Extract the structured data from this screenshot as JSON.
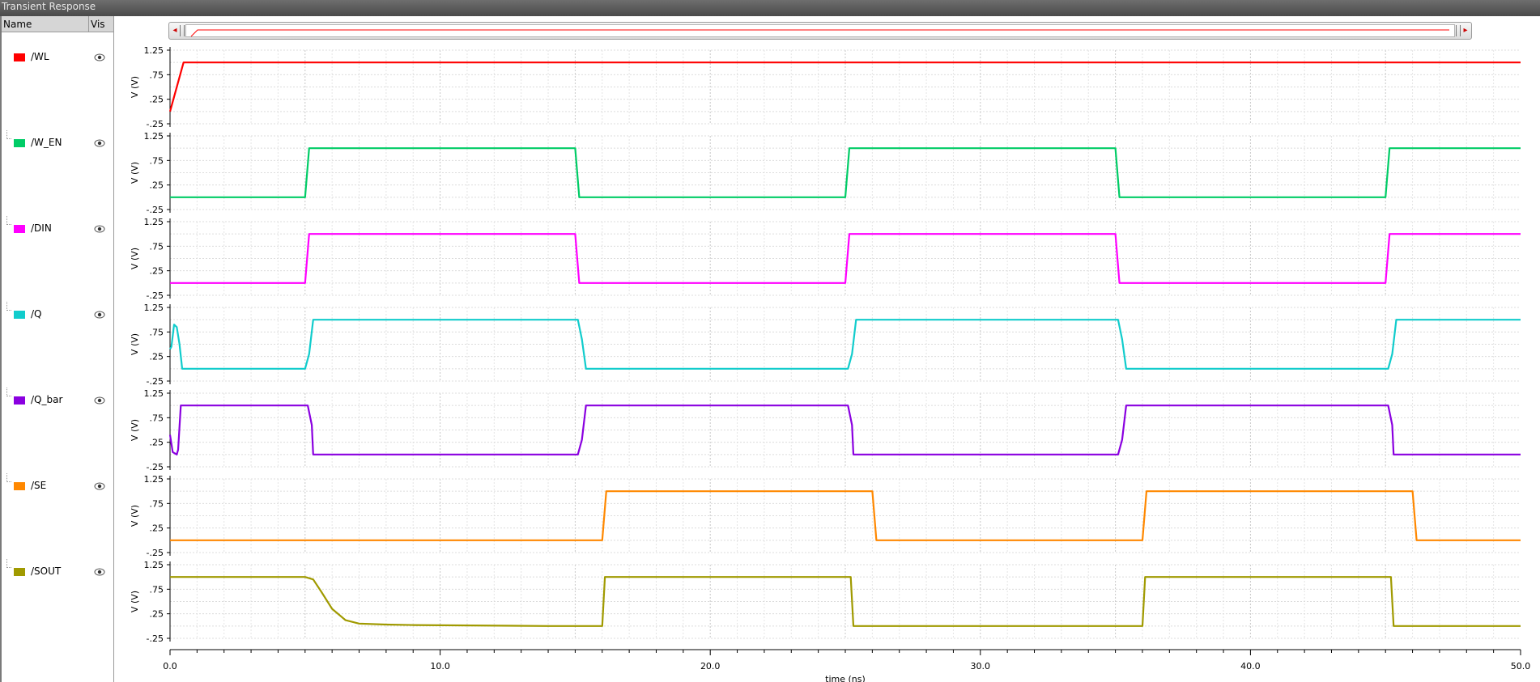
{
  "window": {
    "title": "Transient Response"
  },
  "sidebar": {
    "col_name": "Name",
    "col_vis": "Vis",
    "signals": [
      {
        "name": "/WL",
        "color": "#ff0000",
        "visible": true
      },
      {
        "name": "/W_EN",
        "color": "#00cc66",
        "visible": true
      },
      {
        "name": "/DIN",
        "color": "#ff00ff",
        "visible": true
      },
      {
        "name": "/Q",
        "color": "#11cccc",
        "visible": true
      },
      {
        "name": "/Q_bar",
        "color": "#8a00e0",
        "visible": true
      },
      {
        "name": "/SE",
        "color": "#ff8800",
        "visible": true
      },
      {
        "name": "/SOUT",
        "color": "#a09a00",
        "visible": true
      }
    ],
    "icons": {
      "visibility": "eye-icon",
      "tree": "tree-connector-icon"
    }
  },
  "scrollbar": {
    "left_arrow": "◂",
    "right_arrow": "▸"
  },
  "chart_data": {
    "type": "line",
    "xlabel": "time (ns)",
    "ylabel": "V (V)",
    "xlim": [
      0.0,
      50.0
    ],
    "ylim": [
      -0.25,
      1.25
    ],
    "xticks": [
      "0.0",
      "10.0",
      "20.0",
      "30.0",
      "40.0",
      "50.0"
    ],
    "yticks": [
      "1.25",
      ".75",
      ".25",
      "-.25"
    ],
    "grid": true,
    "series": [
      {
        "name": "/WL",
        "color": "#ff0000",
        "x": [
          0,
          0.5,
          50
        ],
        "y": [
          0,
          1.0,
          1.0
        ]
      },
      {
        "name": "/W_EN",
        "color": "#00cc66",
        "x": [
          0,
          5.0,
          5.15,
          15.0,
          15.15,
          25.0,
          25.15,
          35.0,
          35.15,
          45.0,
          45.15,
          50
        ],
        "y": [
          0,
          0,
          1.0,
          1.0,
          0,
          0,
          1.0,
          1.0,
          0,
          0,
          1.0,
          1.0
        ]
      },
      {
        "name": "/DIN",
        "color": "#ff00ff",
        "x": [
          0,
          5.0,
          5.15,
          15.0,
          15.15,
          25.0,
          25.15,
          35.0,
          35.15,
          45.0,
          45.15,
          50
        ],
        "y": [
          0,
          0,
          1.0,
          1.0,
          0,
          0,
          1.0,
          1.0,
          0,
          0,
          1.0,
          1.0
        ]
      },
      {
        "name": "/Q",
        "color": "#11cccc",
        "x": [
          0,
          0.05,
          0.15,
          0.25,
          0.35,
          0.45,
          5.0,
          5.15,
          5.3,
          15.1,
          15.25,
          15.4,
          25.1,
          25.25,
          25.4,
          35.1,
          35.25,
          35.4,
          45.1,
          45.25,
          45.4,
          50
        ],
        "y": [
          0.4,
          0.45,
          0.9,
          0.85,
          0.5,
          0.0,
          0.0,
          0.3,
          1.0,
          1.0,
          0.6,
          0.0,
          0.0,
          0.3,
          1.0,
          1.0,
          0.6,
          0.0,
          0.0,
          0.3,
          1.0,
          1.0
        ]
      },
      {
        "name": "/Q_bar",
        "color": "#8a00e0",
        "x": [
          0,
          0.1,
          0.25,
          0.3,
          0.4,
          5.1,
          5.25,
          5.3,
          15.1,
          15.25,
          15.4,
          25.1,
          25.25,
          25.3,
          35.1,
          35.25,
          35.4,
          45.1,
          45.25,
          45.3,
          50
        ],
        "y": [
          0.4,
          0.05,
          0.0,
          0.1,
          1.0,
          1.0,
          0.6,
          0.0,
          0.0,
          0.3,
          1.0,
          1.0,
          0.6,
          0.0,
          0.0,
          0.3,
          1.0,
          1.0,
          0.6,
          0.0,
          0.0
        ]
      },
      {
        "name": "/SE",
        "color": "#ff8800",
        "x": [
          0,
          16.0,
          16.15,
          26.0,
          26.15,
          36.0,
          36.15,
          46.0,
          46.15,
          50
        ],
        "y": [
          0,
          0,
          1.0,
          1.0,
          0,
          0,
          1.0,
          1.0,
          0,
          0
        ]
      },
      {
        "name": "/SOUT",
        "color": "#a09a00",
        "x": [
          0,
          5.0,
          5.3,
          5.6,
          6.0,
          6.5,
          7.0,
          8.0,
          9.0,
          14.0,
          16.0,
          16.1,
          25.2,
          25.3,
          36.0,
          36.1,
          45.2,
          45.3,
          50
        ],
        "y": [
          1.0,
          1.0,
          0.95,
          0.7,
          0.35,
          0.12,
          0.05,
          0.03,
          0.02,
          0.0,
          0.0,
          1.0,
          1.0,
          0.0,
          0.0,
          1.0,
          1.0,
          0.0,
          0.0
        ]
      }
    ]
  }
}
